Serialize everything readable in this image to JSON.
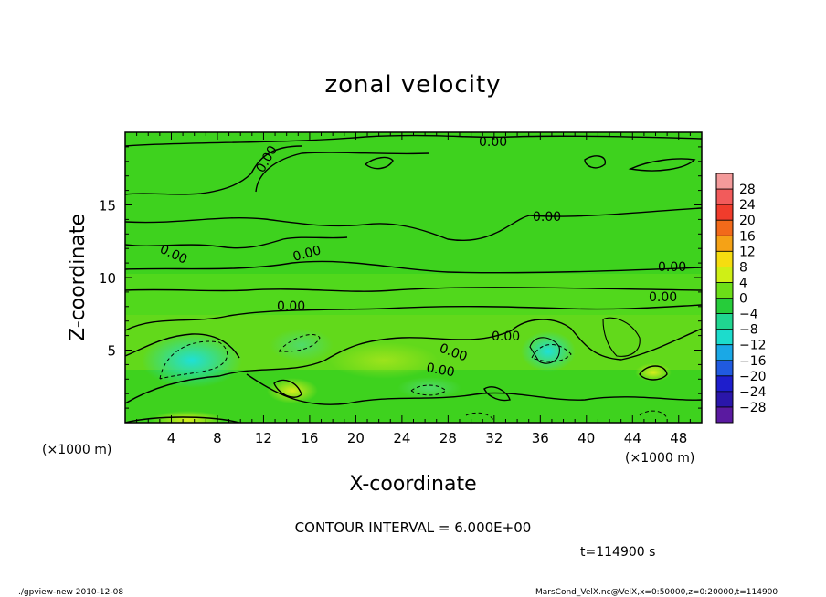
{
  "chart_data": {
    "type": "heatmap",
    "title": "zonal velocity",
    "xlabel": "X-coordinate",
    "ylabel": "Z-coordinate",
    "x_unit": "(×1000 m)",
    "y_unit": "(×1000 m)",
    "xlim": [
      0,
      50
    ],
    "ylim": [
      0,
      20
    ],
    "x_ticks": [
      "4",
      "8",
      "12",
      "16",
      "20",
      "24",
      "28",
      "32",
      "36",
      "40",
      "44",
      "48"
    ],
    "y_ticks": [
      "5",
      "10",
      "15"
    ],
    "contour_interval_text": "CONTOUR INTERVAL = 6.000E+00",
    "contour_labels": [
      "0.00",
      "0.00",
      "0.00",
      "0.00",
      "0.00",
      "0.00",
      "0.00",
      "0.00",
      "0.00",
      "0.00",
      "0.00"
    ],
    "colorbar": {
      "ticks": [
        "28",
        "24",
        "20",
        "16",
        "12",
        "8",
        "4",
        "0",
        "−4",
        "−8",
        "−12",
        "−16",
        "−20",
        "−24",
        "−28"
      ],
      "colors": [
        "#f49a9a",
        "#f25b5b",
        "#f03c2c",
        "#f26a1a",
        "#f5a216",
        "#f6dd10",
        "#cfef16",
        "#6cde18",
        "#26cc3a",
        "#20d690",
        "#1cdccc",
        "#1aa8e6",
        "#205ae0",
        "#1e1ecc",
        "#2a16aa",
        "#5a1aa0"
      ]
    },
    "time_label": "t=114900 s",
    "grid": false
  },
  "footer": {
    "left": "./gpview-new   2010-12-08",
    "right": "MarsCond_VelX.nc@VelX,x=0:50000,z=0:20000,t=114900"
  }
}
